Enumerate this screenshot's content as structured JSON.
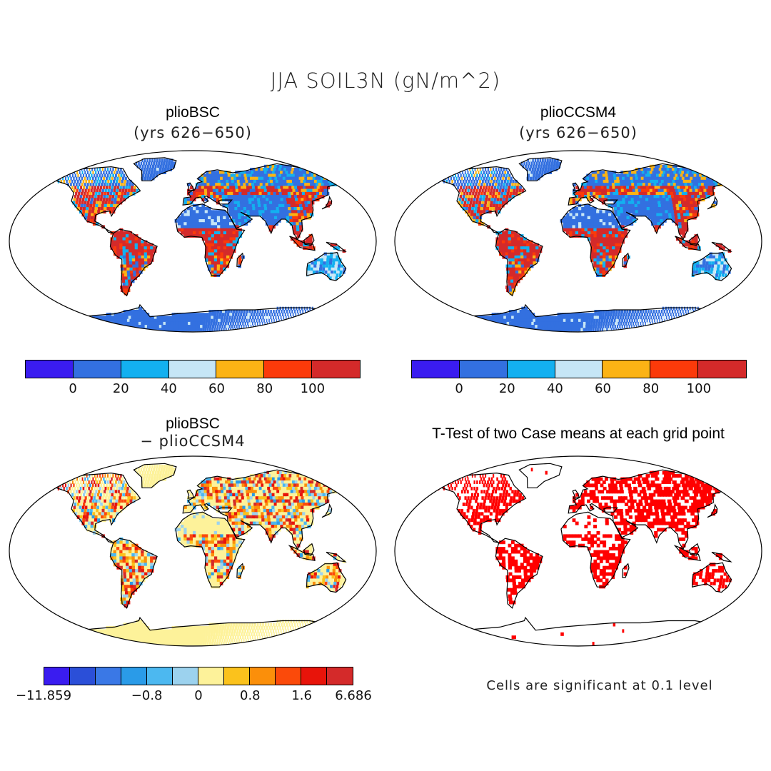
{
  "title": "JJA SOIL3N (gN/m^2)",
  "panels": {
    "top_left": {
      "title": "plioBSC",
      "subtitle": "(yrs 626−650)"
    },
    "top_right": {
      "title": "plioCCSM4",
      "subtitle": "(yrs 626−650)"
    },
    "bottom_left": {
      "title": "plioBSC",
      "subtitle": "− plioCCSM4"
    },
    "bottom_right": {
      "title": "T-Test of two Case means at each grid point",
      "note": "Cells are significant at 0.1 level"
    }
  },
  "colorbar_top": {
    "colors": [
      "#3a1cf0",
      "#3370e0",
      "#13b0f0",
      "#c6e6f6",
      "#fbb315",
      "#fb3a0a",
      "#d42a2a"
    ],
    "ticks": [
      "0",
      "20",
      "40",
      "60",
      "80",
      "100"
    ]
  },
  "colorbar_diff": {
    "colors": [
      "#3a1cf0",
      "#2b4fd8",
      "#3a78e6",
      "#2a9be8",
      "#4cb8f0",
      "#9cd2ee",
      "#fdf29a",
      "#fbc21c",
      "#fb8f0a",
      "#fb4a0a",
      "#e8140a",
      "#d42a2a"
    ],
    "ticks": [
      "−11.859",
      "−0.8",
      "0",
      "0.8",
      "1.6",
      "6.686"
    ]
  },
  "palette": {
    "ocean": "#ffffff",
    "land_outline": "#000000",
    "significant": "#ff0000"
  }
}
